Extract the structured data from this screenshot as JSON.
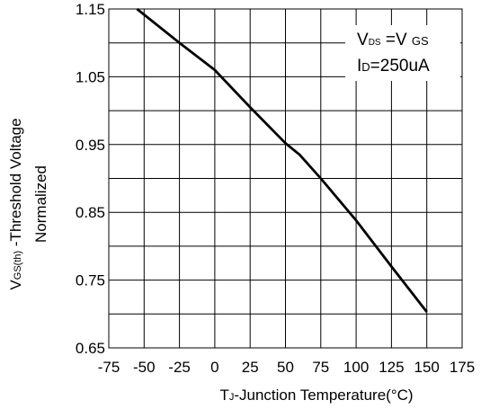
{
  "chart_data": {
    "type": "line",
    "title": "",
    "xlabel": {
      "main": "T",
      "sub": "J",
      "rest": "-Junction Temperature(°C)"
    },
    "ylabel": {
      "line1_main": "V",
      "line1_sub": "GS(th)",
      "line1_rest": " -Threshold Voltage",
      "line2": "Normalized"
    },
    "xlim": [
      -75,
      175
    ],
    "ylim": [
      0.65,
      1.15
    ],
    "x_ticks": [
      -75,
      -50,
      -25,
      0,
      25,
      50,
      75,
      100,
      125,
      150,
      175
    ],
    "x_tick_labels": [
      "-75",
      "-50",
      "-25",
      "0",
      "25",
      "50",
      "75",
      "100",
      "125",
      "150",
      "175"
    ],
    "y_ticks": [
      0.65,
      0.75,
      0.85,
      0.95,
      1.05,
      1.15
    ],
    "y_tick_labels": [
      "0.65",
      "0.75",
      "0.85",
      "0.95",
      "1.05",
      "1.15"
    ],
    "grid": true,
    "series": [
      {
        "x": [
          -55,
          -25,
          0,
          25,
          50,
          60,
          75,
          100,
          125,
          150
        ],
        "y": [
          1.15,
          1.1,
          1.06,
          1.005,
          0.952,
          0.935,
          0.9,
          0.838,
          0.77,
          0.703
        ],
        "color": "#000000"
      }
    ],
    "legend": {
      "placement": "top-right",
      "line1": {
        "a_main": "V",
        "a_sub": "DS",
        "mid": " =V ",
        "b_sub": "GS"
      },
      "line2": {
        "a_main": "I",
        "a_sub": "D",
        "rest": "=250uA"
      }
    }
  }
}
